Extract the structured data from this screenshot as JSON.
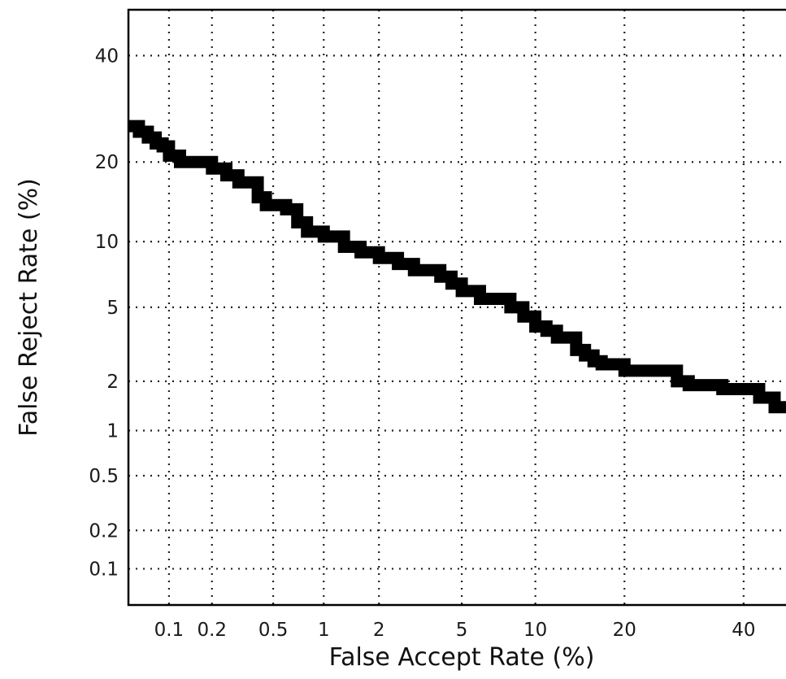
{
  "chart_data": {
    "type": "line",
    "title": "",
    "xlabel": "False Accept Rate (%)",
    "ylabel": "False Reject Rate (%)",
    "x_scale": "normal-deviate",
    "y_scale": "normal-deviate",
    "xlim": [
      0.05,
      50
    ],
    "ylim": [
      0.05,
      50
    ],
    "grid": true,
    "legend": "none",
    "x_ticks": [
      {
        "value": 0.1,
        "label": "0.1"
      },
      {
        "value": 0.2,
        "label": "0.2"
      },
      {
        "value": 0.5,
        "label": "0.5"
      },
      {
        "value": 1,
        "label": "1"
      },
      {
        "value": 2,
        "label": "2"
      },
      {
        "value": 5,
        "label": "5"
      },
      {
        "value": 10,
        "label": "10"
      },
      {
        "value": 20,
        "label": "20"
      },
      {
        "value": 40,
        "label": "40"
      }
    ],
    "y_ticks": [
      {
        "value": 0.1,
        "label": "0.1"
      },
      {
        "value": 0.2,
        "label": "0.2"
      },
      {
        "value": 0.5,
        "label": "0.5"
      },
      {
        "value": 1,
        "label": "1"
      },
      {
        "value": 2,
        "label": "2"
      },
      {
        "value": 5,
        "label": "5"
      },
      {
        "value": 10,
        "label": "10"
      },
      {
        "value": 20,
        "label": "20"
      },
      {
        "value": 40,
        "label": "40"
      }
    ],
    "series": [
      {
        "color": "#000000",
        "x": [
          0.05,
          0.06,
          0.07,
          0.08,
          0.09,
          0.1,
          0.12,
          0.15,
          0.2,
          0.25,
          0.3,
          0.4,
          0.45,
          0.5,
          0.6,
          0.7,
          0.8,
          1.0,
          1.3,
          1.6,
          2.0,
          2.5,
          3.0,
          3.6,
          4.0,
          4.5,
          5.0,
          6.0,
          7.0,
          8.0,
          9.0,
          10.0,
          11.0,
          12.0,
          13.0,
          14.0,
          15.0,
          16.0,
          17.0,
          18.0,
          20.0,
          22.0,
          25.0,
          28.0,
          30.0,
          33.0,
          36.0,
          40.0,
          43.0,
          46.0,
          50.0
        ],
        "y": [
          26,
          25,
          24,
          23,
          22.5,
          21,
          20,
          20,
          19,
          18,
          17,
          15,
          14,
          14,
          13.5,
          12,
          11,
          10.5,
          9.5,
          9,
          8.5,
          8,
          7.5,
          7.5,
          7,
          6.5,
          6,
          5.5,
          5.5,
          5,
          4.5,
          4,
          3.8,
          3.5,
          3.5,
          3.0,
          2.8,
          2.6,
          2.5,
          2.5,
          2.3,
          2.3,
          2.3,
          2.0,
          1.9,
          1.9,
          1.8,
          1.8,
          1.6,
          1.4,
          1.2
        ]
      }
    ]
  }
}
